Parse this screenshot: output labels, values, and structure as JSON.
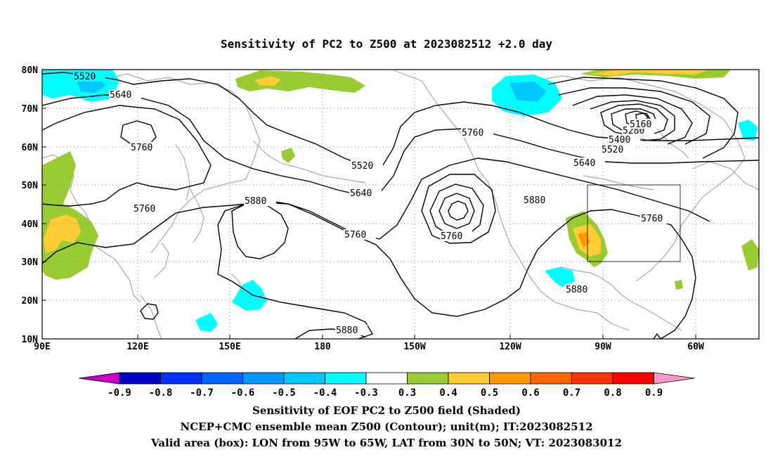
{
  "title": "Sensitivity of PC2 to Z500 at 2023082512 +2.0 day",
  "lat_labels": [
    "80N",
    "70N",
    "60N",
    "50N",
    "40N",
    "30N",
    "20N",
    "10N"
  ],
  "lon_labels": [
    "90E",
    "120E",
    "150E",
    "180",
    "150W",
    "120W",
    "90W",
    "60W"
  ],
  "contour_labels": [
    "5520",
    "5640",
    "5760",
    "5760",
    "5520",
    "5640",
    "5760",
    "5880",
    "5760",
    "5760",
    "5880",
    "5640",
    "5520",
    "5400",
    "5280",
    "5160",
    "5760",
    "5880",
    "5880"
  ],
  "colorbar": {
    "ticks": [
      "-0.9",
      "-0.8",
      "-0.7",
      "-0.6",
      "-0.5",
      "-0.4",
      "-0.3",
      "0.3",
      "0.4",
      "0.5",
      "0.6",
      "0.7",
      "0.8",
      "0.9"
    ],
    "colors": [
      "#c800c8",
      "#0000c8",
      "#0032ff",
      "#0064ff",
      "#0096ff",
      "#00c8ff",
      "#00ffff",
      "#ffffff",
      "#99cc33",
      "#ffcc33",
      "#ff9900",
      "#ff6600",
      "#ff3300",
      "#ff0000",
      "#ff99cc"
    ]
  },
  "captions": [
    "Sensitivity of EOF PC2 to Z500 field (Shaded)",
    "NCEP+CMC ensemble mean Z500 (Contour); unit(m); IT:2023082512",
    "Valid area (box): LON from 95W to 65W, LAT from 30N to 50N; VT: 2023083012"
  ]
}
